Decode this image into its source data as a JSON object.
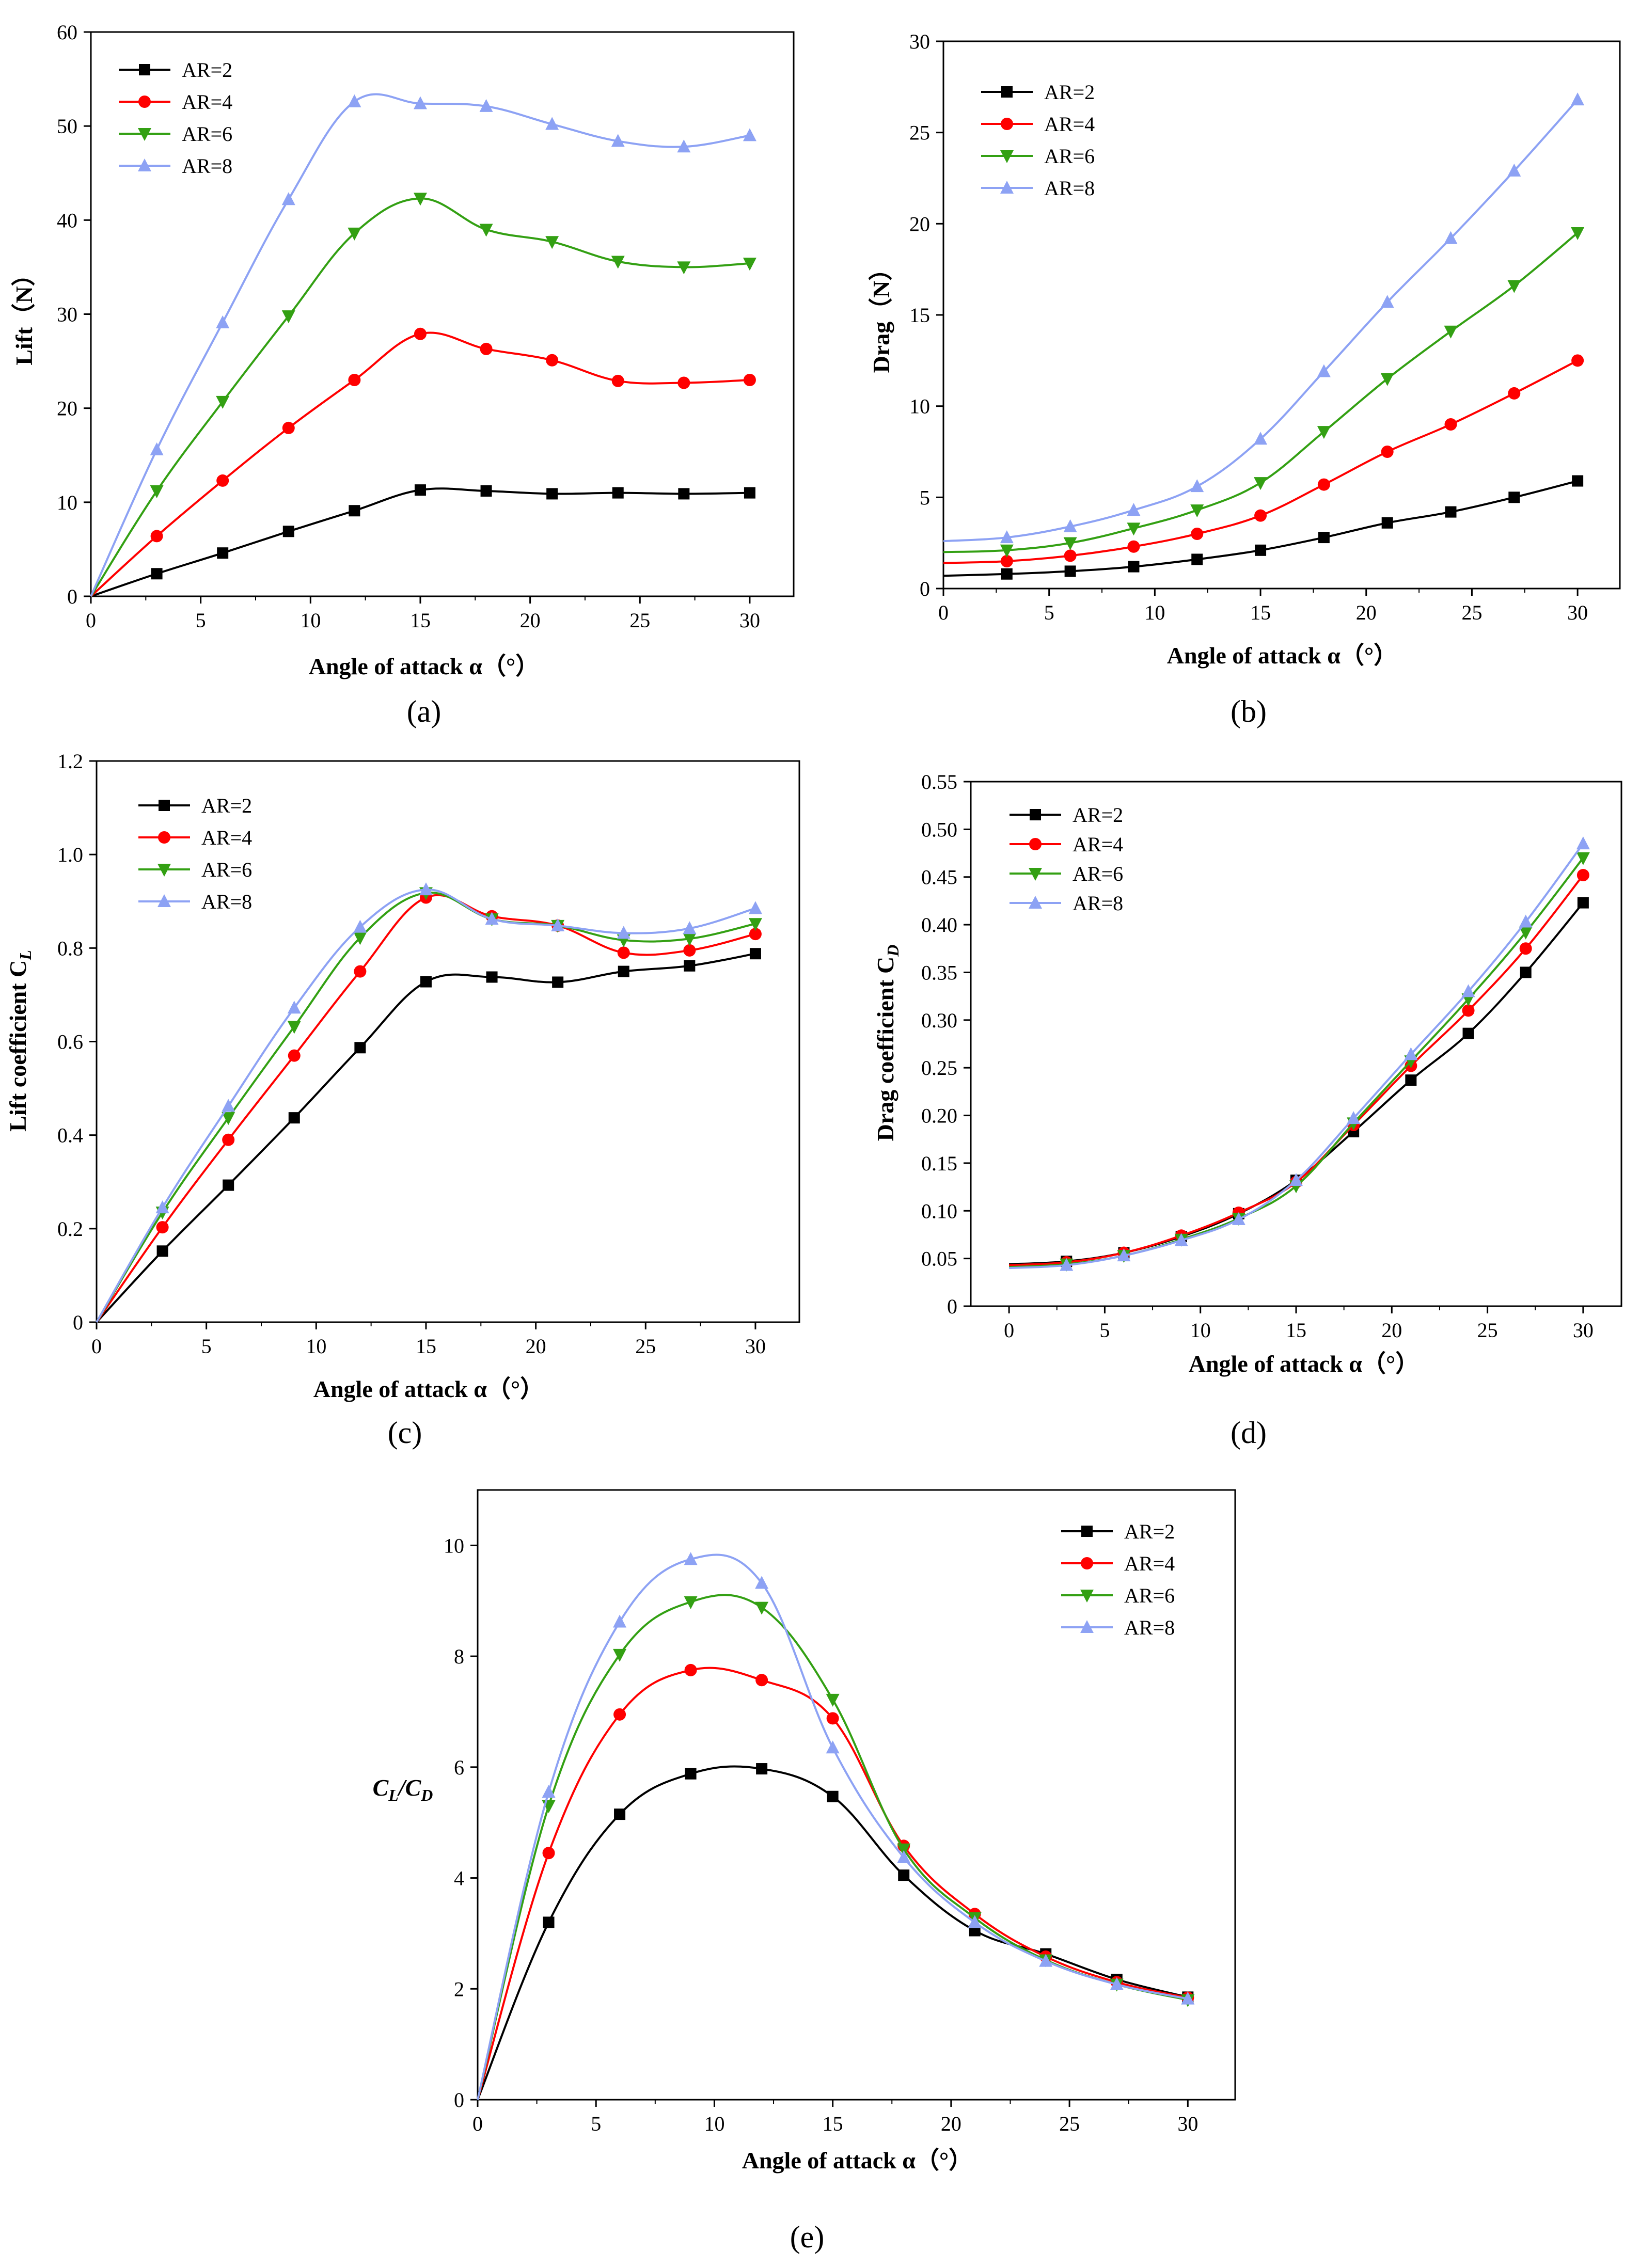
{
  "chart_data": [
    {
      "id": "a",
      "type": "line",
      "caption": "(a)",
      "ylabel": "Lift（N）",
      "xlabel": "Angle of attack α（°）",
      "xlim": [
        0,
        32
      ],
      "ylim": [
        0,
        60
      ],
      "xticks": [
        0,
        5,
        10,
        15,
        20,
        25,
        30
      ],
      "yticks": [
        0,
        10,
        20,
        30,
        40,
        50,
        60
      ],
      "legend_position": "top-left",
      "x": [
        0,
        3,
        6,
        9,
        12,
        15,
        18,
        21,
        24,
        27,
        30
      ],
      "series": [
        {
          "name": "AR=2",
          "color": "#000000",
          "marker": "square",
          "values": [
            0,
            2.4,
            4.6,
            6.9,
            9.1,
            11.3,
            11.2,
            10.9,
            11.0,
            10.9,
            11.0
          ]
        },
        {
          "name": "AR=4",
          "color": "#ff0000",
          "marker": "circle",
          "values": [
            0,
            6.4,
            12.3,
            17.9,
            23.0,
            27.9,
            26.3,
            25.1,
            22.9,
            22.7,
            23.0
          ]
        },
        {
          "name": "AR=6",
          "color": "#33a013",
          "marker": "triangle-down",
          "values": [
            0,
            11.2,
            20.7,
            29.8,
            38.6,
            42.3,
            39.0,
            37.7,
            35.6,
            35.0,
            35.4
          ]
        },
        {
          "name": "AR=8",
          "color": "#8da2f4",
          "marker": "triangle-up",
          "values": [
            0,
            15.6,
            29.1,
            42.2,
            52.6,
            52.4,
            52.1,
            50.2,
            48.4,
            47.8,
            49.0
          ]
        }
      ]
    },
    {
      "id": "b",
      "type": "line",
      "caption": "(b)",
      "ylabel": "Drag（N）",
      "xlabel": "Angle of attack α（°）",
      "xlim": [
        0,
        32
      ],
      "ylim": [
        0,
        30
      ],
      "xticks": [
        0,
        5,
        10,
        15,
        20,
        25,
        30
      ],
      "yticks": [
        0,
        5,
        10,
        15,
        20,
        25,
        30
      ],
      "legend_position": "top-left",
      "x": [
        0,
        3,
        6,
        9,
        12,
        15,
        18,
        21,
        24,
        27,
        30
      ],
      "series": [
        {
          "name": "AR=2",
          "color": "#000000",
          "marker": "square",
          "values": [
            0.7,
            0.8,
            0.95,
            1.2,
            1.6,
            2.1,
            2.8,
            3.6,
            4.2,
            5.0,
            5.9
          ]
        },
        {
          "name": "AR=4",
          "color": "#ff0000",
          "marker": "circle",
          "values": [
            1.4,
            1.5,
            1.8,
            2.3,
            3.0,
            4.0,
            5.7,
            7.5,
            9.0,
            10.7,
            12.5
          ]
        },
        {
          "name": "AR=6",
          "color": "#33a013",
          "marker": "triangle-down",
          "values": [
            2.0,
            2.1,
            2.5,
            3.3,
            4.3,
            5.8,
            8.6,
            11.5,
            14.1,
            16.6,
            19.5
          ]
        },
        {
          "name": "AR=8",
          "color": "#8da2f4",
          "marker": "triangle-up",
          "values": [
            2.6,
            2.8,
            3.4,
            4.3,
            5.6,
            8.2,
            11.9,
            15.7,
            19.2,
            22.9,
            26.8
          ]
        }
      ]
    },
    {
      "id": "c",
      "type": "line",
      "caption": "(c)",
      "ylabel": "Lift coefficient C",
      "ylabel_sub": "L",
      "xlabel": "Angle of attack α（°）",
      "xlim": [
        0,
        32
      ],
      "ylim": [
        0,
        1.2
      ],
      "xticks": [
        0,
        5,
        10,
        15,
        20,
        25,
        30
      ],
      "yticks": [
        0,
        0.2,
        0.4,
        0.6,
        0.8,
        1.0,
        1.2
      ],
      "ytick_labels": [
        "0",
        "0.2",
        "0.4",
        "0.6",
        "0.8",
        "1.0",
        "1.2"
      ],
      "legend_position": "top-left",
      "x": [
        0,
        3,
        6,
        9,
        12,
        15,
        18,
        21,
        24,
        27,
        30
      ],
      "series": [
        {
          "name": "AR=2",
          "color": "#000000",
          "marker": "square",
          "values": [
            0,
            0.152,
            0.293,
            0.437,
            0.587,
            0.728,
            0.738,
            0.727,
            0.75,
            0.762,
            0.788
          ]
        },
        {
          "name": "AR=4",
          "color": "#ff0000",
          "marker": "circle",
          "values": [
            0,
            0.203,
            0.39,
            0.57,
            0.75,
            0.908,
            0.868,
            0.848,
            0.79,
            0.795,
            0.83
          ]
        },
        {
          "name": "AR=6",
          "color": "#33a013",
          "marker": "triangle-down",
          "values": [
            0,
            0.235,
            0.437,
            0.632,
            0.822,
            0.918,
            0.862,
            0.848,
            0.817,
            0.82,
            0.852
          ]
        },
        {
          "name": "AR=8",
          "color": "#8da2f4",
          "marker": "triangle-up",
          "values": [
            0,
            0.245,
            0.462,
            0.672,
            0.845,
            0.925,
            0.862,
            0.848,
            0.832,
            0.842,
            0.885
          ]
        }
      ]
    },
    {
      "id": "d",
      "type": "line",
      "caption": "(d)",
      "ylabel": "Drag coefficient C",
      "ylabel_sub": "D",
      "xlabel": "Angle of attack α（°）",
      "xlim": [
        -2,
        32
      ],
      "ylim": [
        0,
        0.55
      ],
      "xticks": [
        0,
        5,
        10,
        15,
        20,
        25,
        30
      ],
      "yticks": [
        0,
        0.05,
        0.1,
        0.15,
        0.2,
        0.25,
        0.3,
        0.35,
        0.4,
        0.45,
        0.5,
        0.55
      ],
      "ytick_labels": [
        "0",
        "0.05",
        "0.10",
        "0.15",
        "0.20",
        "0.25",
        "0.30",
        "0.35",
        "0.40",
        "0.45",
        "0.50",
        "0.55"
      ],
      "legend_position": "top-left",
      "x": [
        0,
        3,
        6,
        9,
        12,
        15,
        18,
        21,
        24,
        27,
        30
      ],
      "series": [
        {
          "name": "AR=2",
          "color": "#000000",
          "marker": "square",
          "values": [
            0.044,
            0.047,
            0.056,
            0.073,
            0.097,
            0.132,
            0.183,
            0.237,
            0.286,
            0.35,
            0.423
          ]
        },
        {
          "name": "AR=4",
          "color": "#ff0000",
          "marker": "circle",
          "values": [
            0.043,
            0.046,
            0.056,
            0.074,
            0.098,
            0.13,
            0.19,
            0.252,
            0.31,
            0.375,
            0.452
          ]
        },
        {
          "name": "AR=6",
          "color": "#33a013",
          "marker": "triangle-down",
          "values": [
            0.041,
            0.044,
            0.053,
            0.07,
            0.092,
            0.126,
            0.192,
            0.257,
            0.322,
            0.392,
            0.47
          ]
        },
        {
          "name": "AR=8",
          "color": "#8da2f4",
          "marker": "triangle-up",
          "values": [
            0.04,
            0.043,
            0.053,
            0.069,
            0.091,
            0.132,
            0.197,
            0.264,
            0.33,
            0.403,
            0.485
          ]
        }
      ]
    },
    {
      "id": "e",
      "type": "line",
      "caption": "(e)",
      "ylabel": "C",
      "ylabel_sub": "L",
      "ylabel_mid": "/C",
      "ylabel_sub2": "D",
      "xlabel": "Angle of attack α（°）",
      "xlim": [
        0,
        32
      ],
      "ylim": [
        0,
        11
      ],
      "xticks": [
        0,
        5,
        10,
        15,
        20,
        25,
        30
      ],
      "yticks": [
        0,
        2,
        4,
        6,
        8,
        10
      ],
      "legend_position": "top-right",
      "x": [
        0,
        3,
        6,
        9,
        12,
        15,
        18,
        21,
        24,
        27,
        30
      ],
      "series": [
        {
          "name": "AR=2",
          "color": "#000000",
          "marker": "square",
          "values": [
            0,
            3.2,
            5.15,
            5.88,
            5.97,
            5.47,
            4.05,
            3.05,
            2.63,
            2.17,
            1.85
          ]
        },
        {
          "name": "AR=4",
          "color": "#ff0000",
          "marker": "circle",
          "values": [
            0,
            4.45,
            6.95,
            7.75,
            7.57,
            6.88,
            4.58,
            3.35,
            2.58,
            2.12,
            1.84
          ]
        },
        {
          "name": "AR=6",
          "color": "#33a013",
          "marker": "triangle-down",
          "values": [
            0,
            5.3,
            8.03,
            8.98,
            8.88,
            7.22,
            4.52,
            3.28,
            2.52,
            2.08,
            1.8
          ]
        },
        {
          "name": "AR=8",
          "color": "#8da2f4",
          "marker": "triangle-up",
          "values": [
            0,
            5.55,
            8.62,
            9.75,
            9.32,
            6.35,
            4.37,
            3.2,
            2.5,
            2.08,
            1.82
          ]
        }
      ]
    }
  ]
}
